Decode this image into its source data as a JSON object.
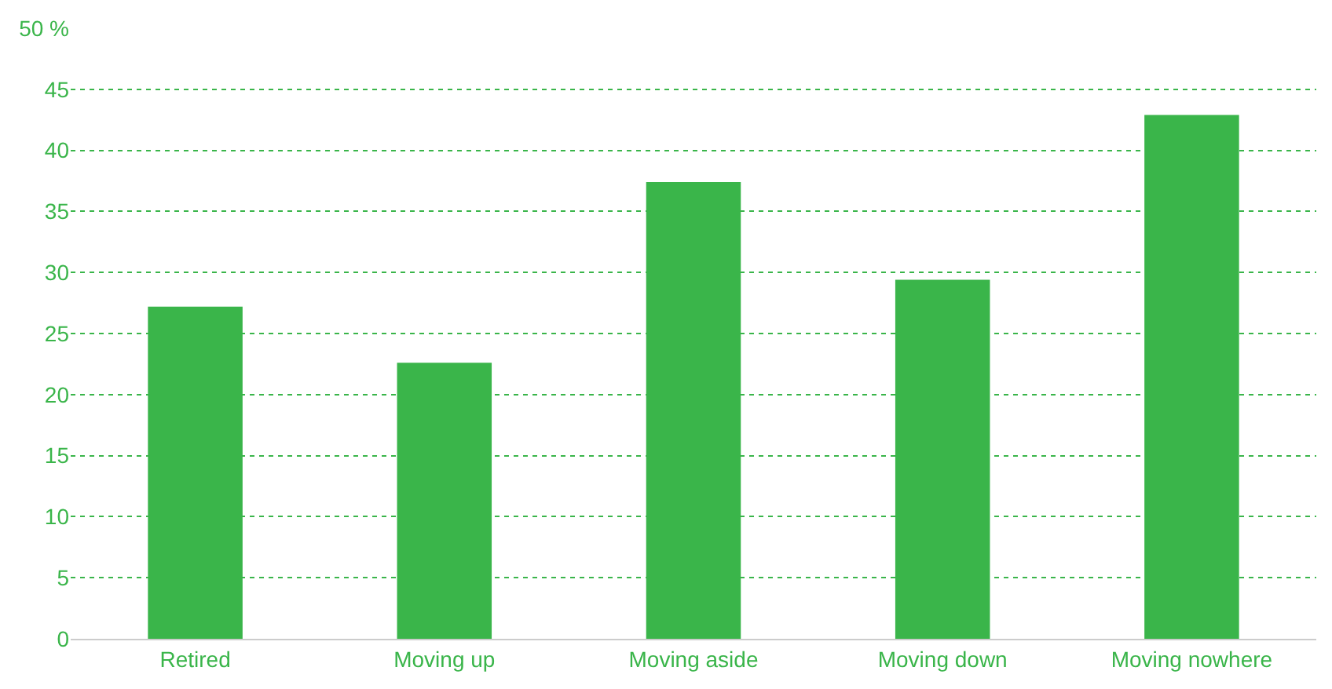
{
  "chart_data": {
    "type": "bar",
    "categories": [
      "Retired",
      "Moving up",
      "Moving aside",
      "Moving down",
      "Moving nowhere"
    ],
    "values": [
      27.2,
      22.6,
      37.4,
      29.4,
      42.9
    ],
    "color": "#3ab54a",
    "ylim": [
      0,
      50
    ],
    "yticks": [
      0,
      5,
      10,
      15,
      20,
      25,
      30,
      35,
      40,
      45,
      {
        "value": 50,
        "label": "50 %"
      }
    ],
    "grid": "y"
  }
}
